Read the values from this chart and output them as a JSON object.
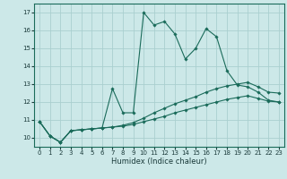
{
  "xlabel": "Humidex (Indice chaleur)",
  "bg_color": "#cce8e8",
  "grid_color": "#aacfcf",
  "line_color": "#1a6b5a",
  "xlim": [
    -0.5,
    23.5
  ],
  "ylim": [
    9.5,
    17.5
  ],
  "yticks": [
    10,
    11,
    12,
    13,
    14,
    15,
    16,
    17
  ],
  "xticks": [
    0,
    1,
    2,
    3,
    4,
    5,
    6,
    7,
    8,
    9,
    10,
    11,
    12,
    13,
    14,
    15,
    16,
    17,
    18,
    19,
    20,
    21,
    22,
    23
  ],
  "lines": [
    {
      "x": [
        0,
        1,
        2,
        3,
        4,
        5,
        6,
        7,
        8,
        9,
        10,
        11,
        12,
        13,
        14,
        15,
        16,
        17,
        18,
        19,
        20,
        21,
        22,
        23
      ],
      "y": [
        10.9,
        10.1,
        9.75,
        10.4,
        10.45,
        10.5,
        10.55,
        10.6,
        10.65,
        10.75,
        10.9,
        11.05,
        11.2,
        11.4,
        11.55,
        11.7,
        11.85,
        12.0,
        12.15,
        12.25,
        12.35,
        12.2,
        12.05,
        12.0
      ]
    },
    {
      "x": [
        0,
        1,
        2,
        3,
        4,
        5,
        6,
        7,
        8,
        9,
        10,
        11,
        12,
        13,
        14,
        15,
        16,
        17,
        18,
        19,
        20,
        21,
        22,
        23
      ],
      "y": [
        10.9,
        10.1,
        9.75,
        10.4,
        10.45,
        10.5,
        10.55,
        10.6,
        10.7,
        10.85,
        11.1,
        11.4,
        11.65,
        11.9,
        12.1,
        12.3,
        12.55,
        12.75,
        12.9,
        13.0,
        13.1,
        12.85,
        12.55,
        12.5
      ]
    },
    {
      "x": [
        0,
        1,
        2,
        3,
        4,
        5,
        6,
        7,
        8,
        9,
        10,
        11,
        12,
        13,
        14,
        15,
        16,
        17,
        18,
        19,
        20,
        21,
        22,
        23
      ],
      "y": [
        10.9,
        10.1,
        9.75,
        10.4,
        10.45,
        10.5,
        10.55,
        12.75,
        11.4,
        11.4,
        17.0,
        16.3,
        16.5,
        15.8,
        14.4,
        15.0,
        16.1,
        15.65,
        13.75,
        12.95,
        12.85,
        12.55,
        12.1,
        12.0
      ]
    }
  ]
}
